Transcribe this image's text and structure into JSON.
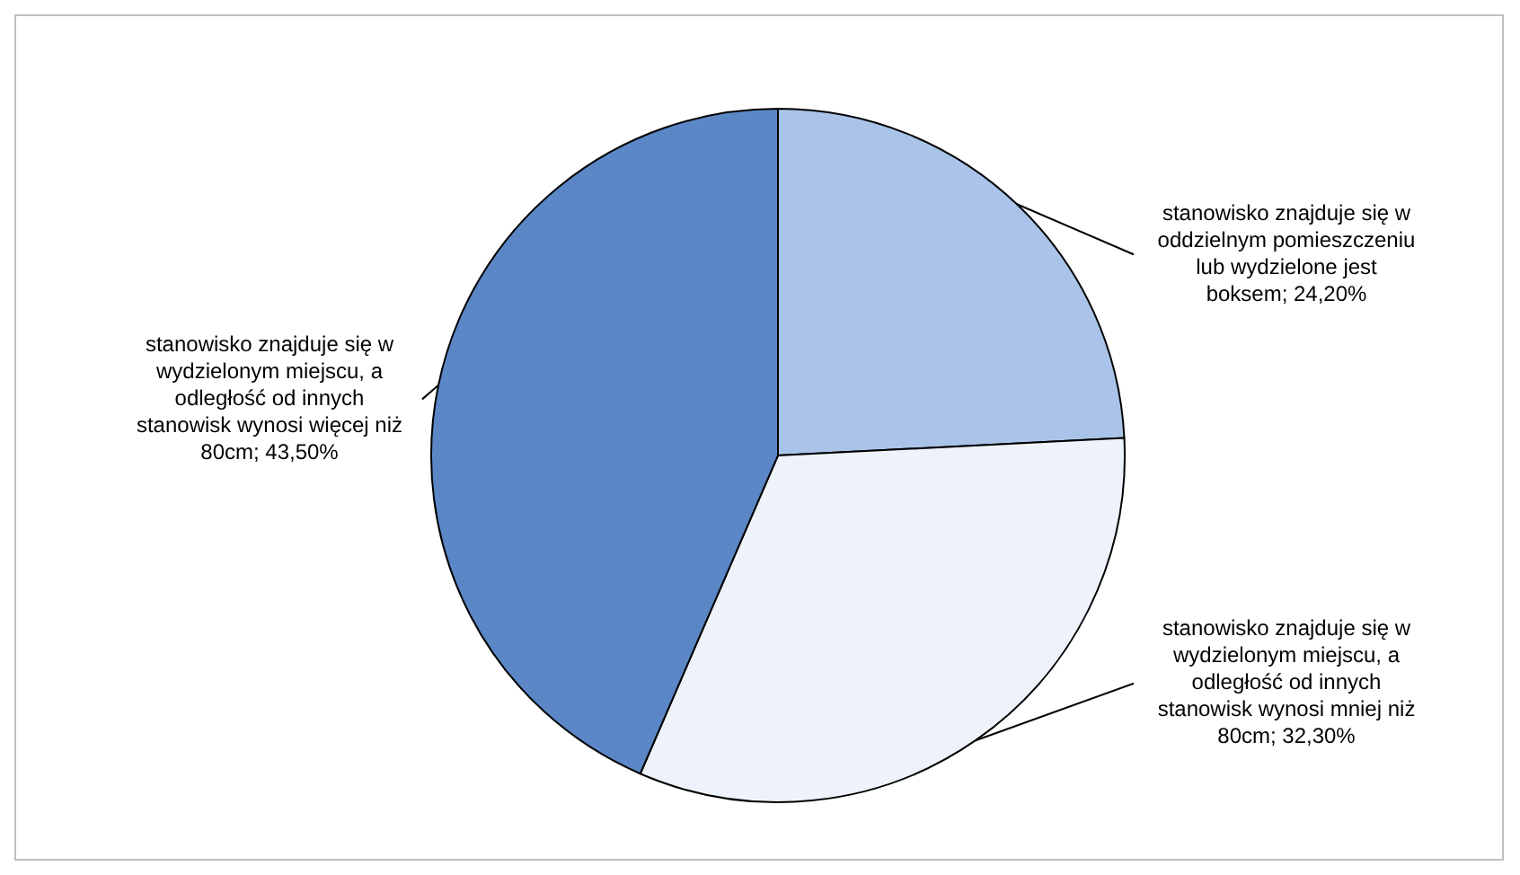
{
  "chart_data": {
    "type": "pie",
    "categories": [
      "stanowisko znajduje się w oddzielnym pomieszczeniu lub wydzielone jest boksem",
      "stanowisko znajduje się w wydzielonym miejscu, a odległość od innych stanowisk wynosi mniej niż 80cm",
      "stanowisko znajduje się w wydzielonym miejscu, a odległość od innych stanowisk wynosi więcej niż 80cm"
    ],
    "values": [
      24.2,
      32.3,
      43.5
    ],
    "colors": [
      "#a9c4e8",
      "#eef3fb",
      "#5b87c7"
    ],
    "value_labels": [
      "24,20%",
      "32,30%",
      "43,50%"
    ],
    "legend": false
  }
}
